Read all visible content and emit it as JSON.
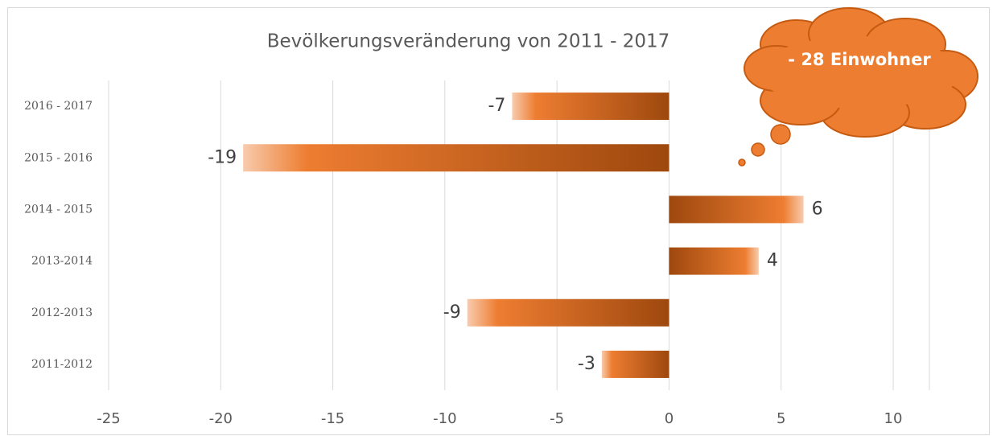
{
  "chart_data": {
    "type": "bar",
    "orientation": "horizontal",
    "title": "Bevölkerungsveränderung von 2011 - 2017",
    "annotation": "- 28 Einwohner",
    "categories": [
      "2016 - 2017",
      "2015 - 2016",
      "2014 - 2015",
      "2013-2014",
      "2012-2013",
      "2011-2012"
    ],
    "values": [
      -7,
      -19,
      6,
      4,
      -9,
      -3
    ],
    "color": "#ed7d31",
    "xlim": [
      -25,
      10
    ],
    "xticks": [
      -25,
      -20,
      -15,
      -10,
      -5,
      0,
      5,
      10
    ],
    "grid": true
  }
}
